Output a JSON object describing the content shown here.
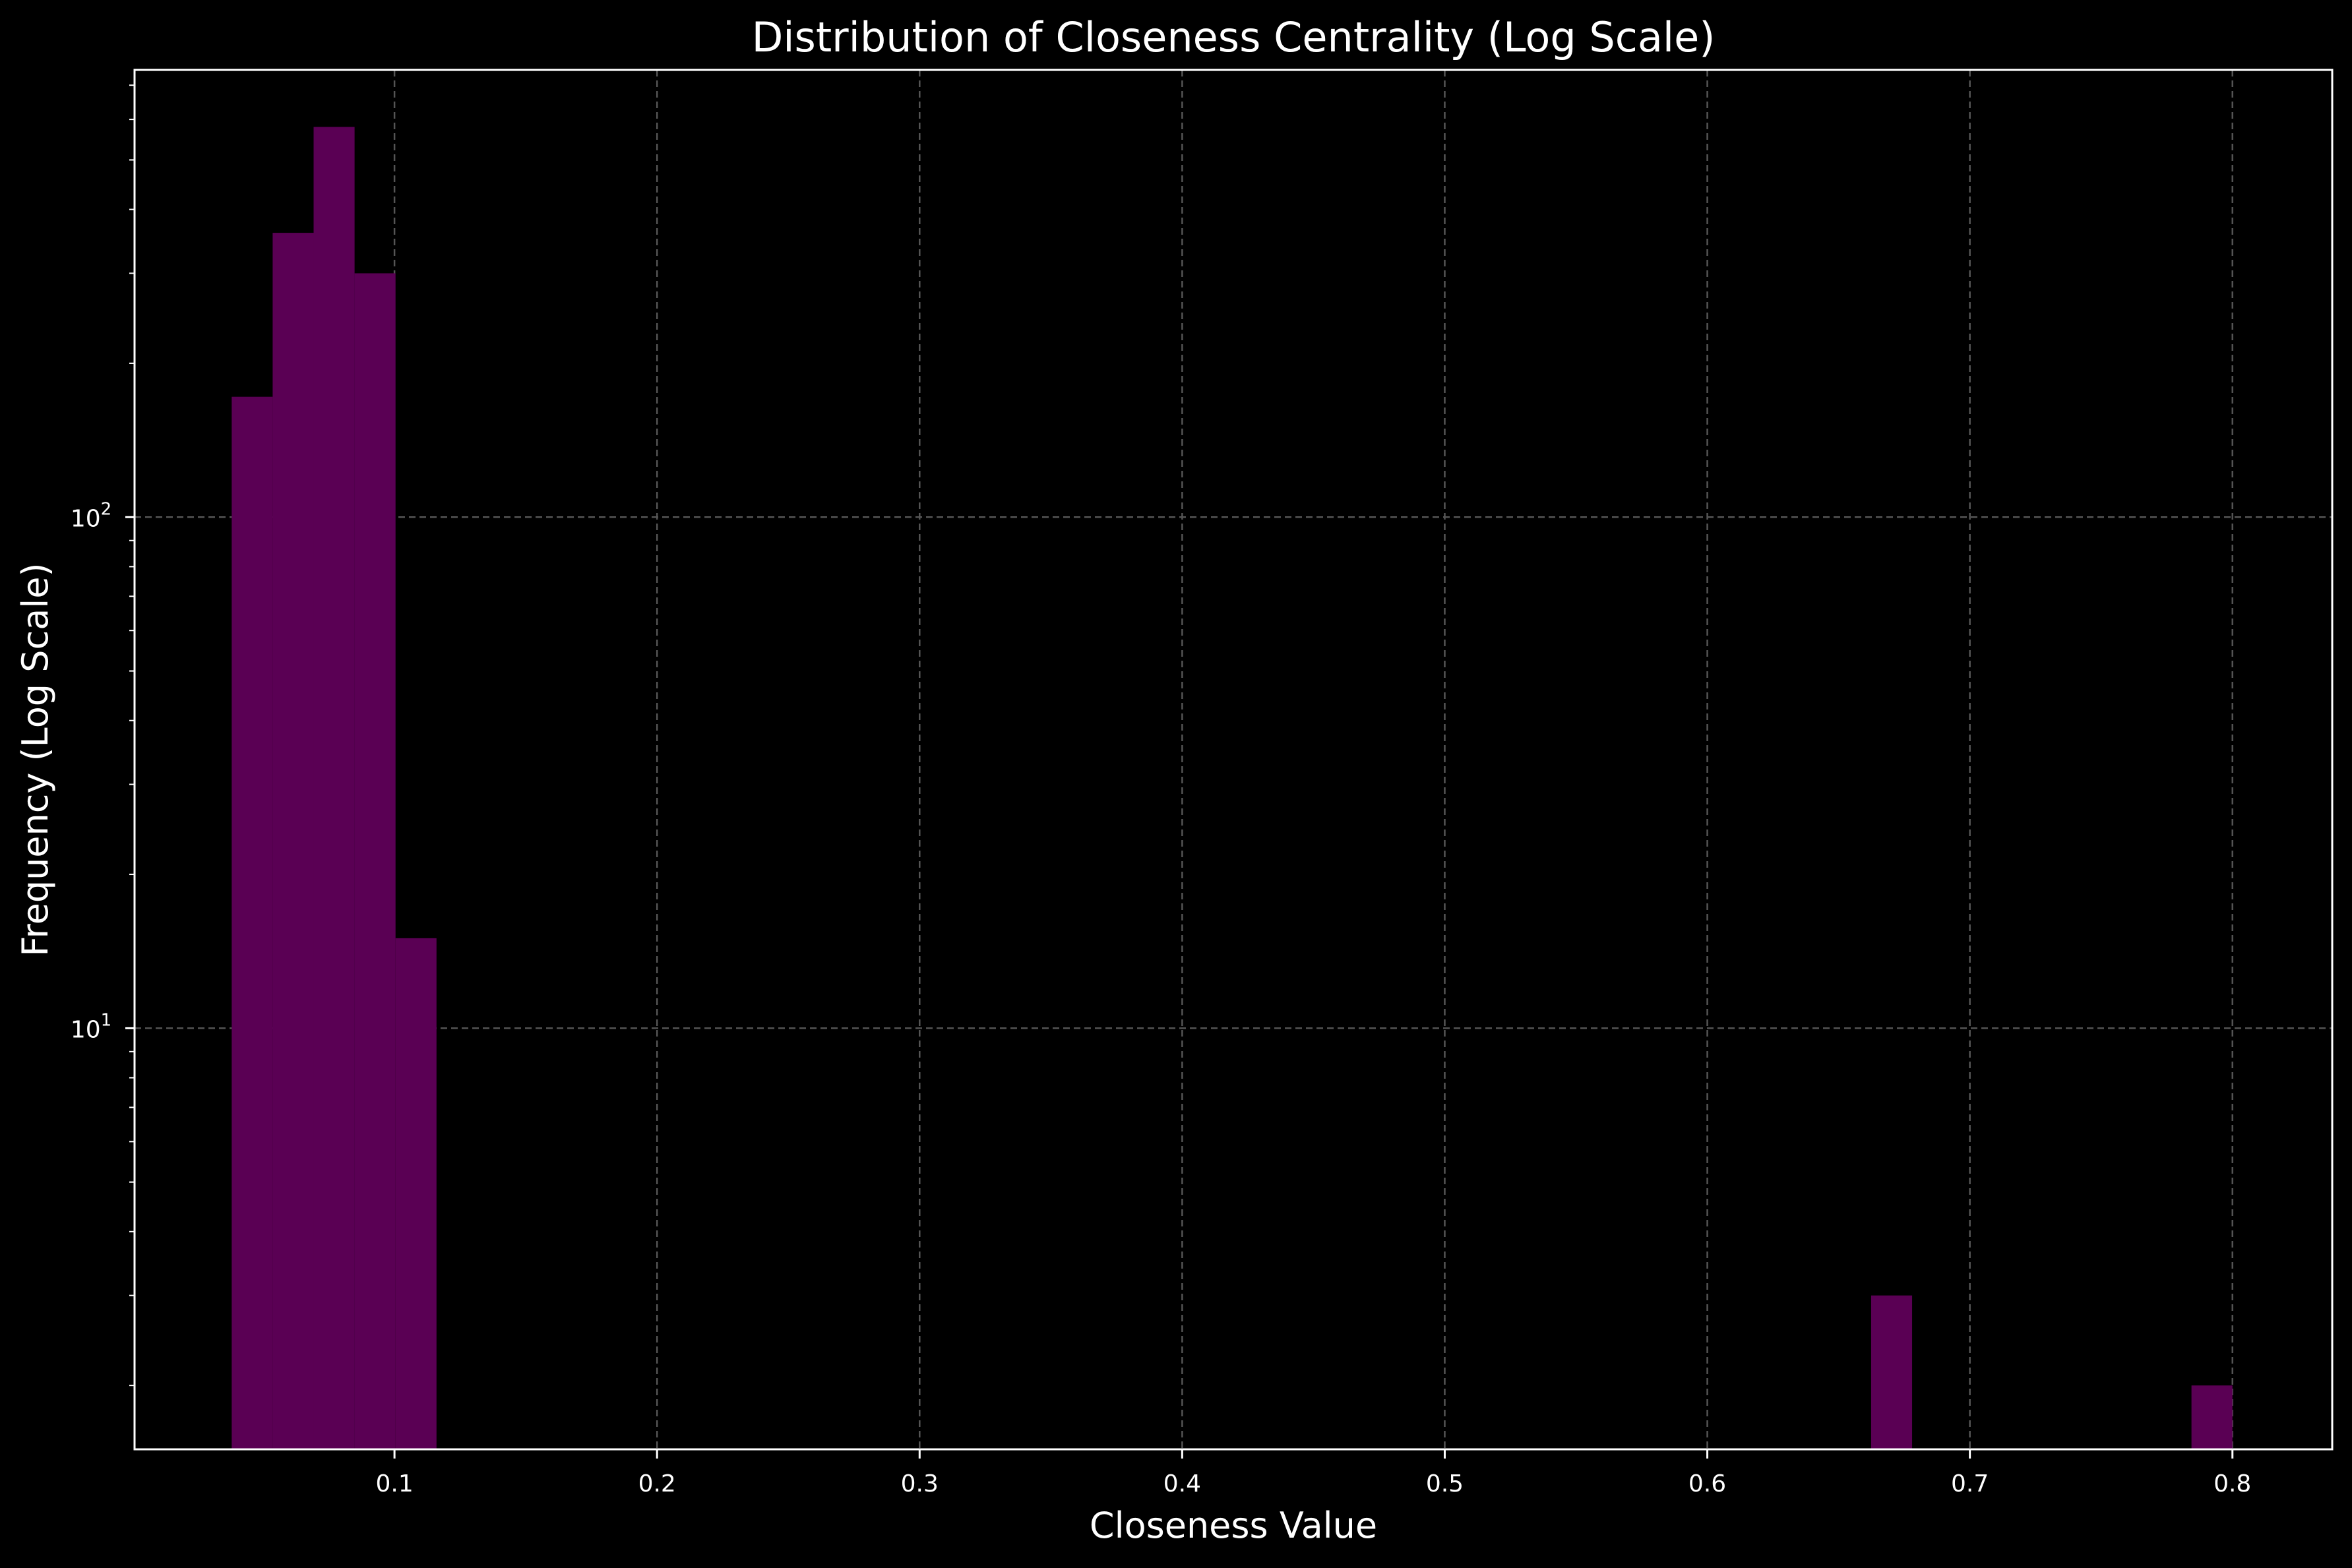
{
  "chart_data": {
    "type": "bar",
    "title": "Distribution of Closeness Centrality (Log Scale)",
    "xlabel": "Closeness Value",
    "ylabel": "Frequency (Log Scale)",
    "yscale": "log",
    "xlim": [
      0.001,
      0.838
    ],
    "ylim": [
      1.5,
      750
    ],
    "grid": true,
    "bin_width": 0.0156,
    "bins": [
      {
        "start": 0.038,
        "end": 0.0536,
        "count": 172
      },
      {
        "start": 0.0536,
        "end": 0.0692,
        "count": 360
      },
      {
        "start": 0.0692,
        "end": 0.0848,
        "count": 580
      },
      {
        "start": 0.0848,
        "end": 0.1004,
        "count": 300
      },
      {
        "start": 0.1004,
        "end": 0.116,
        "count": 15
      },
      {
        "start": 0.6624,
        "end": 0.678,
        "count": 3
      },
      {
        "start": 0.7844,
        "end": 0.8,
        "count": 2
      }
    ],
    "x_ticks": [
      {
        "value": 0.1,
        "label": "0.1"
      },
      {
        "value": 0.2,
        "label": "0.2"
      },
      {
        "value": 0.3,
        "label": "0.3"
      },
      {
        "value": 0.4,
        "label": "0.4"
      },
      {
        "value": 0.5,
        "label": "0.5"
      },
      {
        "value": 0.6,
        "label": "0.6"
      },
      {
        "value": 0.7,
        "label": "0.7"
      },
      {
        "value": 0.8,
        "label": "0.8"
      }
    ],
    "y_major_ticks": [
      {
        "value": 10,
        "base": "10",
        "exp": "1"
      },
      {
        "value": 100,
        "base": "10",
        "exp": "2"
      }
    ],
    "y_minor_ticks": [
      2,
      3,
      4,
      5,
      6,
      7,
      8,
      9,
      20,
      30,
      40,
      50,
      60,
      70,
      80,
      90,
      200,
      300,
      400,
      500,
      600,
      700
    ],
    "colors": {
      "background": "#000000",
      "bar": "#5a0054",
      "axes": "#ffffff",
      "grid": "#555555",
      "text": "#ffffff"
    }
  }
}
